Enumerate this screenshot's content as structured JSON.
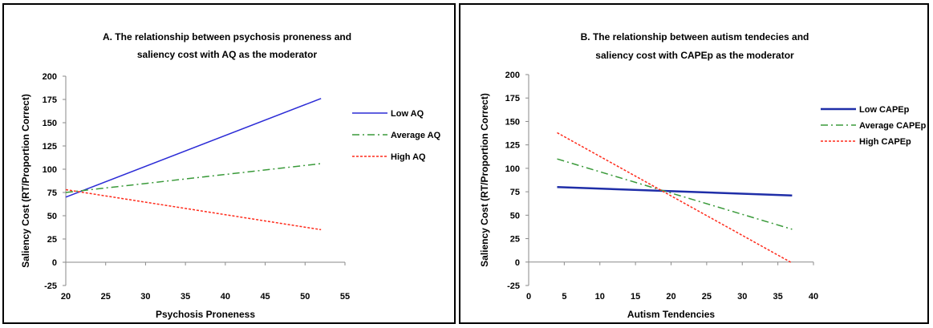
{
  "chart_data": [
    {
      "type": "line",
      "title": [
        "A. The relationship between psychosis proneness and",
        "saliency cost with AQ as the moderator"
      ],
      "xlabel": "Psychosis Proneness",
      "ylabel": "Saliency Cost (RT/Proportion Correct)",
      "xlim": [
        20,
        55
      ],
      "ylim": [
        -25,
        200
      ],
      "xticks": [
        "20",
        "25",
        "30",
        "35",
        "40",
        "45",
        "50",
        "55"
      ],
      "yticks": [
        "-25",
        "0",
        "25",
        "50",
        "75",
        "100",
        "125",
        "150",
        "175",
        "200"
      ],
      "grid": false,
      "legend": "right",
      "series": [
        {
          "name": "Low AQ",
          "x": [
            20,
            52
          ],
          "y": [
            70,
            176
          ],
          "color": "#2b2bd6",
          "dash": "solid",
          "width": 1.5
        },
        {
          "name": "Average AQ",
          "x": [
            20,
            52
          ],
          "y": [
            75,
            106
          ],
          "color": "#3a9a3a",
          "dash": "dashdot",
          "width": 1.5
        },
        {
          "name": "High AQ",
          "x": [
            20,
            52
          ],
          "y": [
            78,
            35
          ],
          "color": "#ff2a1a",
          "dash": "dot",
          "width": 1.5
        }
      ]
    },
    {
      "type": "line",
      "title": [
        "B. The relationship between autism tendecies and",
        "saliency cost with CAPEp as the moderator"
      ],
      "xlabel": "Autism Tendencies",
      "ylabel": "Saliency Cost (RT/Proportion Correct)",
      "xlim": [
        0,
        40
      ],
      "ylim": [
        -25,
        200
      ],
      "xticks": [
        "0",
        "5",
        "10",
        "15",
        "20",
        "25",
        "30",
        "35",
        "40"
      ],
      "yticks": [
        "-25",
        "0",
        "25",
        "50",
        "75",
        "100",
        "125",
        "150",
        "175",
        "200"
      ],
      "grid": false,
      "legend": "right",
      "series": [
        {
          "name": "Low CAPEp",
          "x": [
            4,
            37
          ],
          "y": [
            80,
            71
          ],
          "color": "#1f2ea8",
          "dash": "solid",
          "width": 2.5
        },
        {
          "name": "Average CAPEp",
          "x": [
            4,
            37
          ],
          "y": [
            110,
            35
          ],
          "color": "#3a9a3a",
          "dash": "dashdot",
          "width": 1.5
        },
        {
          "name": "High CAPEp",
          "x": [
            4,
            37
          ],
          "y": [
            138,
            -1
          ],
          "color": "#ff2a1a",
          "dash": "dot",
          "width": 1.5
        }
      ]
    }
  ]
}
